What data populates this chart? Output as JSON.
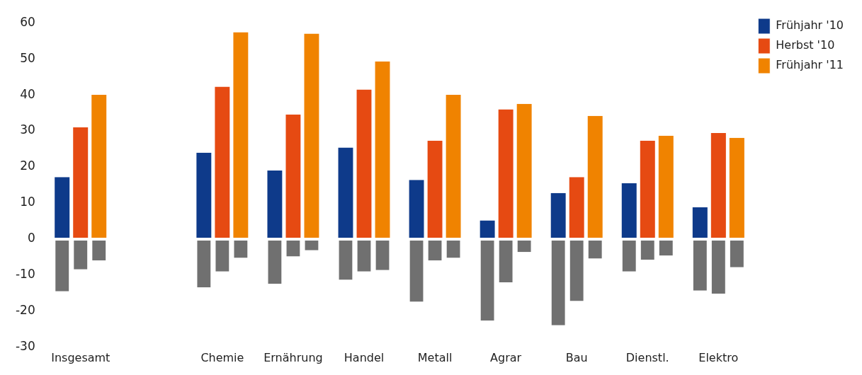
{
  "chart_data": {
    "type": "bar",
    "categories": [
      "Insgesamt",
      null,
      "Chemie",
      "Ernährung",
      "Handel",
      "Metall",
      "Agrar",
      "Bau",
      "Dienstl.",
      "Elektro"
    ],
    "series": [
      {
        "name": "Frühjahr '10",
        "color": "#0e3a8a",
        "values": [
          17.2,
          null,
          24,
          19,
          25.4,
          16.4,
          5.2,
          12.8,
          15.5,
          8.8
        ]
      },
      {
        "name": "Herbst '10",
        "color": "#e64a12",
        "values": [
          31,
          null,
          42.3,
          34.6,
          41.5,
          27.3,
          36,
          17.2,
          27.3,
          29.4
        ]
      },
      {
        "name": "Frühjahr '11",
        "color": "#f08300",
        "values": [
          40,
          null,
          57.4,
          57,
          49.3,
          40,
          37.5,
          34.2,
          28.7,
          28.1
        ]
      },
      {
        "color": "#707070",
        "values": [
          -14.5,
          null,
          -13.4,
          -12.4,
          -11.3,
          -17.4,
          -22.6,
          -23.9,
          -9,
          -14.3
        ]
      },
      {
        "color": "#707070",
        "values": [
          -8.4,
          null,
          -9,
          -4.8,
          -9,
          -5.9,
          -12,
          -17.2,
          -5.7,
          -15.1
        ]
      },
      {
        "color": "#707070",
        "values": [
          -5.9,
          null,
          -5.2,
          -3.1,
          -8.6,
          -5.2,
          -3.6,
          -5.4,
          -4.6,
          -7.8
        ]
      }
    ],
    "ylim": [
      -30,
      60
    ],
    "yticks": [
      -30,
      -20,
      -10,
      0,
      10,
      20,
      30,
      40,
      50,
      60
    ],
    "grid": false,
    "legend": "top right"
  }
}
